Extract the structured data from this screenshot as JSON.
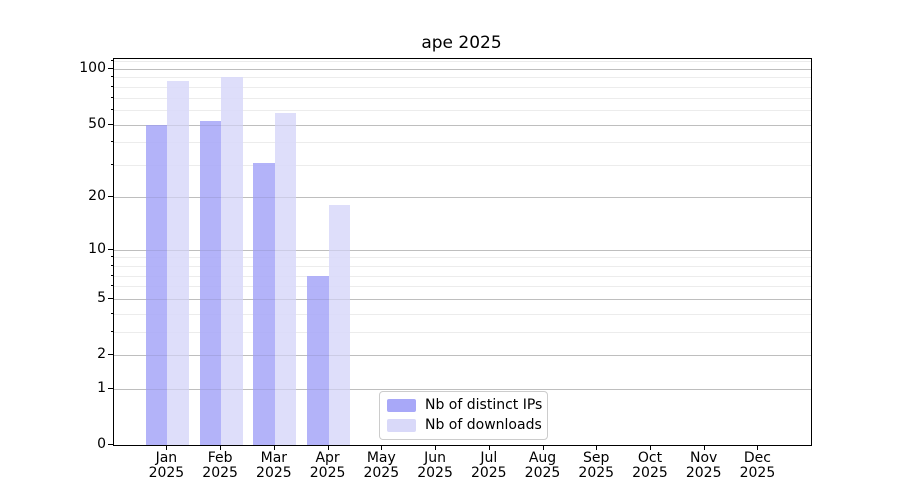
{
  "chart_data": {
    "type": "bar",
    "title": "ape 2025",
    "categories": [
      "Jan",
      "Feb",
      "Mar",
      "Apr",
      "May",
      "Jun",
      "Jul",
      "Aug",
      "Sep",
      "Oct",
      "Nov",
      "Dec"
    ],
    "category_year": "2025",
    "series": [
      {
        "name": "Nb of distinct IPs",
        "color": "#a8a8f8",
        "values": [
          50,
          52,
          31,
          7,
          0,
          0,
          0,
          0,
          0,
          0,
          0,
          0
        ]
      },
      {
        "name": "Nb of downloads",
        "color": "#d9d9f9",
        "values": [
          86,
          90,
          58,
          18,
          0,
          0,
          0,
          0,
          0,
          0,
          0,
          0
        ]
      }
    ],
    "yscale": "log1p",
    "ylabel": "",
    "xlabel": "",
    "y_ticks": [
      0,
      1,
      2,
      5,
      10,
      20,
      50,
      100
    ],
    "y_minor_ticks": [
      3,
      4,
      6,
      7,
      8,
      9,
      30,
      40,
      60,
      70,
      80,
      90,
      110
    ],
    "ylim": [
      0,
      113
    ],
    "grid": "horizontal",
    "legend_position": "lower center",
    "colors": {
      "axis": "#000000",
      "grid_major": "#c9c9c9",
      "grid_minor": "#ececec",
      "legend_border": "#cccccc",
      "background": "#ffffff"
    }
  }
}
